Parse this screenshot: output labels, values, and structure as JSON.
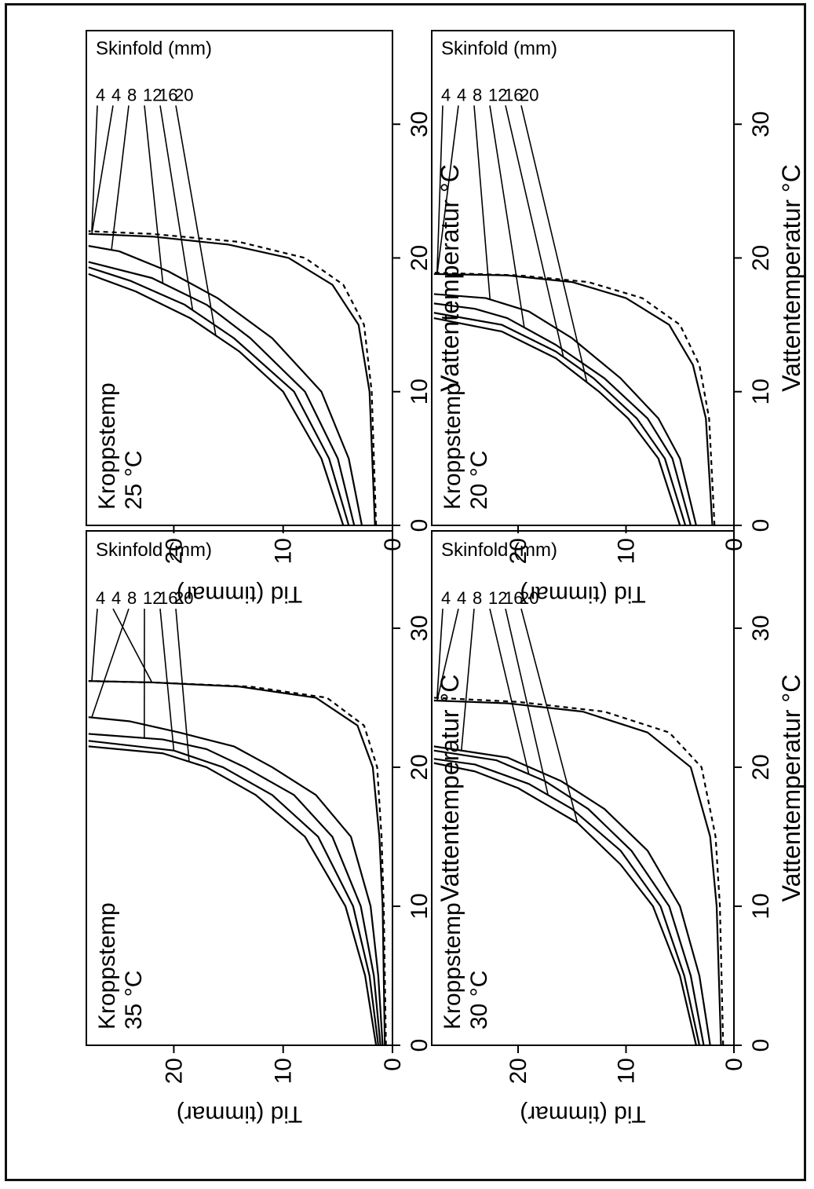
{
  "chart_data": [
    {
      "type": "line",
      "panel_label_line1": "Kroppstemp",
      "panel_label_line2": "35 °C",
      "xlabel": "Vattentemperatur °C",
      "ylabel": "Tid (timmar)",
      "xlim": [
        0,
        37
      ],
      "ylim": [
        0,
        28
      ],
      "xticks": [
        0,
        10,
        20,
        30
      ],
      "yticks": [
        0,
        10,
        20
      ],
      "legend_title": "Skinfold (mm)",
      "legend_labels": [
        "4",
        "4",
        "8",
        "12",
        "16",
        "20"
      ],
      "asymptote": 26.2,
      "series": [
        {
          "name": "4",
          "dashed": true,
          "values": [
            [
              0,
              0.6
            ],
            [
              10,
              0.8
            ],
            [
              15,
              1.0
            ],
            [
              20,
              1.4
            ],
            [
              23,
              2.6
            ],
            [
              25,
              6
            ],
            [
              25.8,
              13
            ],
            [
              26.1,
              22
            ],
            [
              26.2,
              27.8
            ]
          ],
          "label_at": 26.2
        },
        {
          "name": "4",
          "dashed": false,
          "values": [
            [
              0,
              0.7
            ],
            [
              10,
              0.9
            ],
            [
              15,
              1.2
            ],
            [
              20,
              1.8
            ],
            [
              23,
              3.2
            ],
            [
              25,
              7
            ],
            [
              25.8,
              14
            ],
            [
              26.1,
              22
            ],
            [
              26.2,
              27.8
            ]
          ],
          "label_at": 26.1
        },
        {
          "name": "8",
          "dashed": false,
          "values": [
            [
              0,
              0.9
            ],
            [
              5,
              1.3
            ],
            [
              10,
              2
            ],
            [
              15,
              3.8
            ],
            [
              18,
              7
            ],
            [
              20,
              11
            ],
            [
              21.5,
              14.5
            ],
            [
              22.5,
              19.5
            ],
            [
              23.3,
              24
            ],
            [
              23.6,
              27.8
            ]
          ],
          "label_at": 23.6
        },
        {
          "name": "12",
          "dashed": false,
          "values": [
            [
              0,
              1.1
            ],
            [
              5,
              1.7
            ],
            [
              10,
              2.9
            ],
            [
              15,
              5.5
            ],
            [
              18,
              9
            ],
            [
              20,
              13.5
            ],
            [
              21.3,
              17
            ],
            [
              22,
              21
            ],
            [
              22.4,
              27.8
            ]
          ],
          "label_at": 22.1
        },
        {
          "name": "16",
          "dashed": false,
          "values": [
            [
              0,
              1.3
            ],
            [
              5,
              2.1
            ],
            [
              10,
              3.6
            ],
            [
              15,
              6.8
            ],
            [
              18,
              11
            ],
            [
              20,
              15.5
            ],
            [
              21.2,
              20
            ],
            [
              21.9,
              27.8
            ]
          ],
          "label_at": 21.2
        },
        {
          "name": "20",
          "dashed": false,
          "values": [
            [
              0,
              1.5
            ],
            [
              5,
              2.5
            ],
            [
              10,
              4.3
            ],
            [
              15,
              8
            ],
            [
              18,
              12.5
            ],
            [
              20,
              17
            ],
            [
              21,
              21
            ],
            [
              21.5,
              27.8
            ]
          ],
          "label_at": 20.4
        }
      ]
    },
    {
      "type": "line",
      "panel_label_line1": "Kroppstemp",
      "panel_label_line2": "25 °C",
      "xlabel": "Vattentemperatur °C",
      "ylabel": "Tid (timmar)",
      "xlim": [
        0,
        37
      ],
      "ylim": [
        0,
        28
      ],
      "xticks": [
        0,
        10,
        20,
        30
      ],
      "yticks": [
        0,
        10,
        20
      ],
      "legend_title": "Skinfold (mm)",
      "legend_labels": [
        "4",
        "4",
        "8",
        "12",
        "16",
        "20"
      ],
      "asymptote": 22,
      "series": [
        {
          "name": "4",
          "dashed": true,
          "values": [
            [
              0,
              1.5
            ],
            [
              10,
              1.9
            ],
            [
              15,
              2.6
            ],
            [
              18,
              4.5
            ],
            [
              20,
              8
            ],
            [
              21.2,
              14
            ],
            [
              21.8,
              22
            ],
            [
              22,
              27.8
            ]
          ],
          "label_at": 22
        },
        {
          "name": "4",
          "dashed": false,
          "values": [
            [
              0,
              1.6
            ],
            [
              10,
              2.1
            ],
            [
              15,
              3.1
            ],
            [
              18,
              5.5
            ],
            [
              20,
              9.5
            ],
            [
              21,
              15
            ],
            [
              21.6,
              22
            ],
            [
              21.8,
              27.8
            ]
          ],
          "label_at": 21.8
        },
        {
          "name": "8",
          "dashed": false,
          "values": [
            [
              0,
              2.8
            ],
            [
              5,
              4
            ],
            [
              10,
              6.5
            ],
            [
              14,
              11
            ],
            [
              17,
              16
            ],
            [
              19,
              20.5
            ],
            [
              20.5,
              25
            ],
            [
              20.9,
              27.8
            ]
          ],
          "label_at": 20.6
        },
        {
          "name": "12",
          "dashed": false,
          "values": [
            [
              0,
              3.5
            ],
            [
              5,
              5
            ],
            [
              10,
              8
            ],
            [
              14,
              13
            ],
            [
              16.5,
              17
            ],
            [
              18.5,
              22
            ],
            [
              19.7,
              27.8
            ]
          ],
          "label_at": 18.1
        },
        {
          "name": "16",
          "dashed": false,
          "values": [
            [
              0,
              4
            ],
            [
              5,
              5.8
            ],
            [
              10,
              9
            ],
            [
              14,
              14.5
            ],
            [
              16.5,
              19
            ],
            [
              18.3,
              24
            ],
            [
              19.3,
              27.8
            ]
          ],
          "label_at": 16.1
        },
        {
          "name": "20",
          "dashed": false,
          "values": [
            [
              0,
              4.5
            ],
            [
              5,
              6.5
            ],
            [
              10,
              10
            ],
            [
              13,
              14
            ],
            [
              15.5,
              18.5
            ],
            [
              17.5,
              23.5
            ],
            [
              18.8,
              27.8
            ]
          ],
          "label_at": 14.2
        }
      ]
    },
    {
      "type": "line",
      "panel_label_line1": "Kroppstemp",
      "panel_label_line2": "30 °C",
      "xlabel": "Vattentemperatur °C",
      "ylabel": "Tid (timmar)",
      "xlim": [
        0,
        37
      ],
      "ylim": [
        0,
        28
      ],
      "xticks": [
        0,
        10,
        20,
        30
      ],
      "yticks": [
        0,
        10,
        20
      ],
      "legend_title": "Skinfold (mm)",
      "legend_labels": [
        "4",
        "4",
        "8",
        "12",
        "16",
        "20"
      ],
      "asymptote": 25,
      "series": [
        {
          "name": "4",
          "dashed": true,
          "values": [
            [
              0,
              1.0
            ],
            [
              10,
              1.3
            ],
            [
              15,
              1.7
            ],
            [
              20,
              3
            ],
            [
              22.5,
              6
            ],
            [
              24,
              12
            ],
            [
              24.7,
              20
            ],
            [
              25,
              27.8
            ]
          ],
          "label_at": 25
        },
        {
          "name": "4",
          "dashed": false,
          "values": [
            [
              0,
              1.2
            ],
            [
              10,
              1.6
            ],
            [
              15,
              2.2
            ],
            [
              20,
              4
            ],
            [
              22.5,
              8
            ],
            [
              24,
              14
            ],
            [
              24.6,
              21
            ],
            [
              24.8,
              27.8
            ]
          ],
          "label_at": 24.8
        },
        {
          "name": "8",
          "dashed": false,
          "values": [
            [
              0,
              2.2
            ],
            [
              5,
              3.2
            ],
            [
              10,
              5
            ],
            [
              14,
              8
            ],
            [
              17,
              12
            ],
            [
              19,
              16
            ],
            [
              20.7,
              21
            ],
            [
              21.5,
              27.8
            ]
          ],
          "label_at": 21.2
        },
        {
          "name": "12",
          "dashed": false,
          "values": [
            [
              0,
              2.8
            ],
            [
              5,
              4
            ],
            [
              10,
              6
            ],
            [
              14,
              9.5
            ],
            [
              17,
              13.5
            ],
            [
              19,
              17.5
            ],
            [
              20.5,
              22
            ],
            [
              21.2,
              27.8
            ]
          ],
          "label_at": 19.5
        },
        {
          "name": "16",
          "dashed": false,
          "values": [
            [
              0,
              3.2
            ],
            [
              5,
              4.6
            ],
            [
              10,
              6.8
            ],
            [
              14,
              10.5
            ],
            [
              17,
              15
            ],
            [
              18.8,
              19
            ],
            [
              20.2,
              24
            ],
            [
              20.6,
              27.8
            ]
          ],
          "label_at": 18
        },
        {
          "name": "20",
          "dashed": false,
          "values": [
            [
              0,
              3.5
            ],
            [
              5,
              5
            ],
            [
              10,
              7.5
            ],
            [
              13,
              10.5
            ],
            [
              16,
              14.5
            ],
            [
              18.5,
              20
            ],
            [
              19.7,
              24
            ],
            [
              20.3,
              27.8
            ]
          ],
          "label_at": 16
        }
      ]
    },
    {
      "type": "line",
      "panel_label_line1": "Kroppstemp",
      "panel_label_line2": "20 °C",
      "xlabel": "Vattentemperatur °C",
      "ylabel": "Tid (timmar)",
      "xlim": [
        0,
        37
      ],
      "ylim": [
        0,
        28
      ],
      "xticks": [
        0,
        10,
        20,
        30
      ],
      "yticks": [
        0,
        10,
        20
      ],
      "legend_title": "Skinfold (mm)",
      "legend_labels": [
        "4",
        "4",
        "8",
        "12",
        "16",
        "20"
      ],
      "asymptote": 18.9,
      "series": [
        {
          "name": "4",
          "dashed": true,
          "values": [
            [
              0,
              1.8
            ],
            [
              8,
              2.3
            ],
            [
              12,
              3.2
            ],
            [
              15,
              5
            ],
            [
              17,
              8.5
            ],
            [
              18.2,
              13.5
            ],
            [
              18.7,
              20
            ],
            [
              18.9,
              27.8
            ]
          ],
          "label_at": 18.9
        },
        {
          "name": "4",
          "dashed": false,
          "values": [
            [
              0,
              2
            ],
            [
              8,
              2.6
            ],
            [
              12,
              3.8
            ],
            [
              15,
              6
            ],
            [
              17,
              10
            ],
            [
              18.2,
              15
            ],
            [
              18.7,
              21
            ],
            [
              18.8,
              27.8
            ]
          ],
          "label_at": 18.8
        },
        {
          "name": "8",
          "dashed": false,
          "values": [
            [
              0,
              3.5
            ],
            [
              5,
              5
            ],
            [
              8,
              7
            ],
            [
              11,
              10.5
            ],
            [
              14,
              15
            ],
            [
              16,
              19
            ],
            [
              17,
              23
            ],
            [
              17.3,
              27.8
            ]
          ],
          "label_at": 16.9
        },
        {
          "name": "12",
          "dashed": false,
          "values": [
            [
              0,
              4
            ],
            [
              5,
              5.7
            ],
            [
              8,
              8
            ],
            [
              11,
              12
            ],
            [
              13.5,
              16.5
            ],
            [
              15.5,
              21
            ],
            [
              16.2,
              24
            ],
            [
              16.6,
              27.8
            ]
          ],
          "label_at": 14.8
        },
        {
          "name": "16",
          "dashed": false,
          "values": [
            [
              0,
              4.5
            ],
            [
              5,
              6.4
            ],
            [
              8,
              9
            ],
            [
              11,
              13
            ],
            [
              13,
              16.5
            ],
            [
              15,
              21.5
            ],
            [
              15.9,
              27.8
            ]
          ],
          "label_at": 12.6
        },
        {
          "name": "20",
          "dashed": false,
          "values": [
            [
              0,
              5
            ],
            [
              5,
              7
            ],
            [
              8,
              9.8
            ],
            [
              10,
              12.5
            ],
            [
              12.5,
              16.5
            ],
            [
              14.5,
              21.5
            ],
            [
              15.5,
              27.8
            ]
          ],
          "label_at": 10.7
        }
      ]
    }
  ]
}
